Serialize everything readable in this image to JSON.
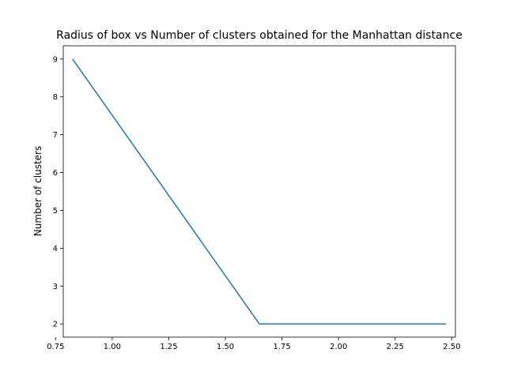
{
  "chart_data": {
    "type": "line",
    "title": "Radius of box vs Number of clusters obtained for the Manhattan distance",
    "xlabel": "",
    "ylabel": "Number of clusters",
    "x": [
      0.825,
      1.65,
      2.475
    ],
    "series": [
      {
        "values": [
          9,
          2,
          2
        ],
        "color": "#1f77b4"
      }
    ],
    "xlim": [
      0.7838,
      2.5162
    ],
    "ylim": [
      1.65,
      9.35
    ],
    "xticks": [
      0.75,
      1.0,
      1.25,
      1.5,
      1.75,
      2.0,
      2.25,
      2.5
    ],
    "xtick_labels": [
      "0.75",
      "1.00",
      "1.25",
      "1.50",
      "1.75",
      "2.00",
      "2.25",
      "2.50"
    ],
    "yticks": [
      2,
      3,
      4,
      5,
      6,
      7,
      8,
      9
    ],
    "ytick_labels": [
      "2",
      "3",
      "4",
      "5",
      "6",
      "7",
      "8",
      "9"
    ],
    "grid": false,
    "legend": "none"
  }
}
